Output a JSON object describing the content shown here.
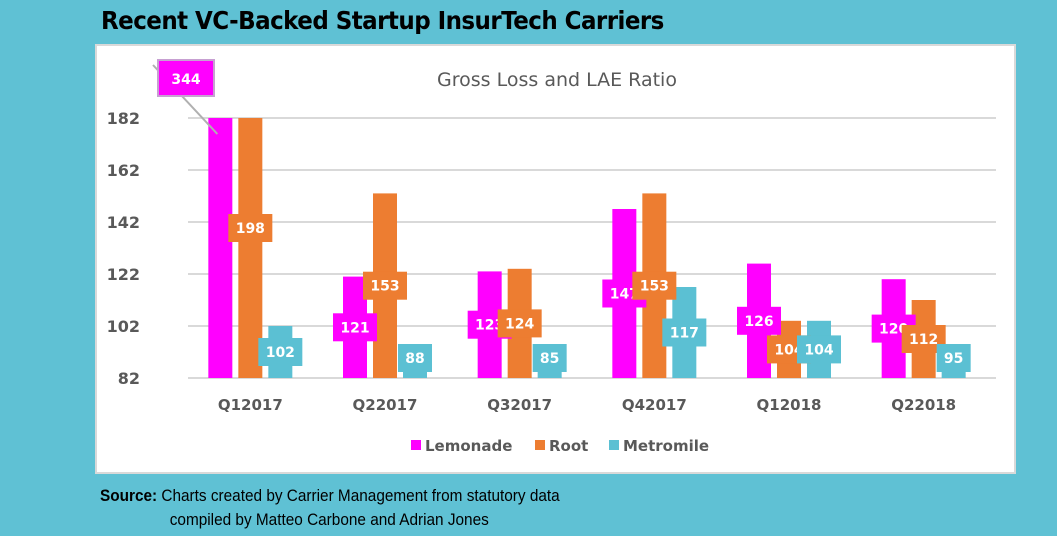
{
  "headline": "Recent VC-Backed Startup InsurTech Carriers",
  "source": {
    "label": "Source:",
    "line1": "Charts created by Carrier Management from statutory data",
    "line2": "compiled by Matteo Carbone and Adrian Jones"
  },
  "colors": {
    "background": "#5fc1d4",
    "Lemonade": "#ff00ff",
    "Root": "#ed7d31",
    "Metromile": "#5bc0d3",
    "grid": "#d9d9d9",
    "text": "#595959"
  },
  "chart_data": {
    "type": "bar",
    "title": "Gross Loss and LAE Ratio",
    "xlabel": "",
    "ylabel": "",
    "categories": [
      "Q12017",
      "Q22017",
      "Q32017",
      "Q42017",
      "Q12018",
      "Q22018"
    ],
    "series": [
      {
        "name": "Lemonade",
        "values": [
          344,
          121,
          123,
          147,
          126,
          120
        ],
        "labels": [
          "344",
          "121",
          "123",
          "147",
          "126",
          "120"
        ]
      },
      {
        "name": "Root",
        "values": [
          198,
          153,
          124,
          153,
          104,
          112
        ],
        "labels": [
          "198",
          "153",
          "124",
          "153",
          "104",
          "112"
        ]
      },
      {
        "name": "Metromile",
        "values": [
          102,
          88,
          85,
          117,
          104,
          95
        ],
        "labels": [
          "102",
          "88",
          "85",
          "117",
          "104",
          "95"
        ]
      }
    ],
    "ylim": [
      82,
      182
    ],
    "yticks": [
      "82",
      "102",
      "122",
      "142",
      "162",
      "182"
    ],
    "ytick_values": [
      82,
      102,
      122,
      142,
      162,
      182
    ],
    "grid": true,
    "legend": "bottom-center",
    "note": "Bars exceeding 182 are clipped at the axis maximum"
  }
}
